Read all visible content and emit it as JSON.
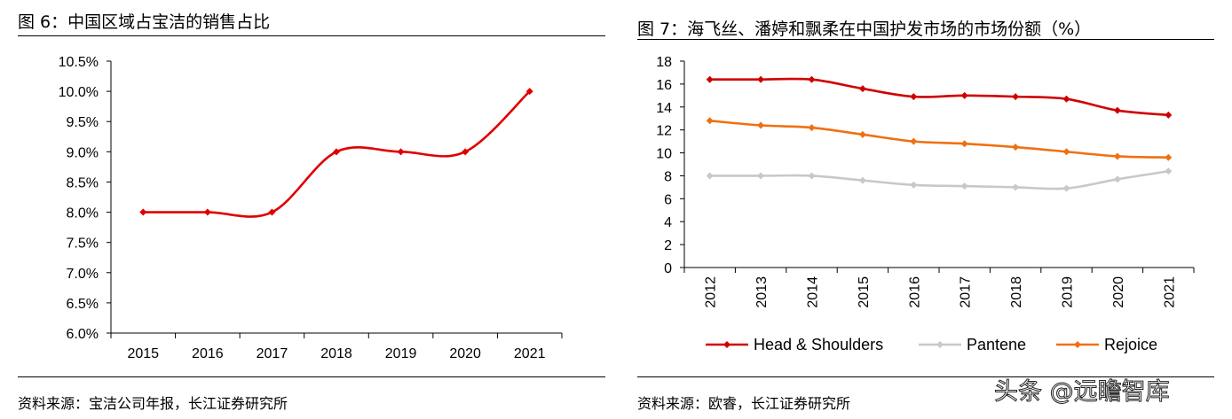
{
  "chart_data": [
    {
      "type": "line",
      "title": "图 6：中国区域占宝洁的销售占比",
      "source": "资料来源：宝洁公司年报，长江证券研究所",
      "categories": [
        "2015",
        "2016",
        "2017",
        "2018",
        "2019",
        "2020",
        "2021"
      ],
      "series": [
        {
          "values": [
            8.0,
            8.0,
            8.0,
            9.0,
            9.0,
            9.0,
            10.0
          ],
          "color": "#e00000"
        }
      ],
      "ylim": [
        6.0,
        10.5
      ],
      "yticks": [
        "6.0%",
        "6.5%",
        "7.0%",
        "7.5%",
        "8.0%",
        "8.5%",
        "9.0%",
        "9.5%",
        "10.0%",
        "10.5%"
      ],
      "grid": false
    },
    {
      "type": "line",
      "title": "图 7：海飞丝、潘婷和飘柔在中国护发市场的市场份额（%）",
      "source": "资料来源：欧睿，长江证券研究所",
      "categories": [
        "2012",
        "2013",
        "2014",
        "2015",
        "2016",
        "2017",
        "2018",
        "2019",
        "2020",
        "2021"
      ],
      "series": [
        {
          "name": "Head & Shoulders",
          "values": [
            16.4,
            16.4,
            16.4,
            15.6,
            14.9,
            15.0,
            14.9,
            14.7,
            13.7,
            13.3
          ],
          "color": "#d00000"
        },
        {
          "name": "Pantene",
          "values": [
            8.0,
            8.0,
            8.0,
            7.6,
            7.2,
            7.1,
            7.0,
            6.9,
            7.7,
            8.4
          ],
          "color": "#c8c8c8"
        },
        {
          "name": "Rejoice",
          "values": [
            12.8,
            12.4,
            12.2,
            11.6,
            11.0,
            10.8,
            10.5,
            10.1,
            9.7,
            9.6
          ],
          "color": "#f07010"
        }
      ],
      "ylim": [
        0,
        18
      ],
      "yticks": [
        "0",
        "2",
        "4",
        "6",
        "8",
        "10",
        "12",
        "14",
        "16",
        "18"
      ],
      "grid": false,
      "legend": "bottom"
    }
  ],
  "watermark": "头条 @远瞻智库"
}
